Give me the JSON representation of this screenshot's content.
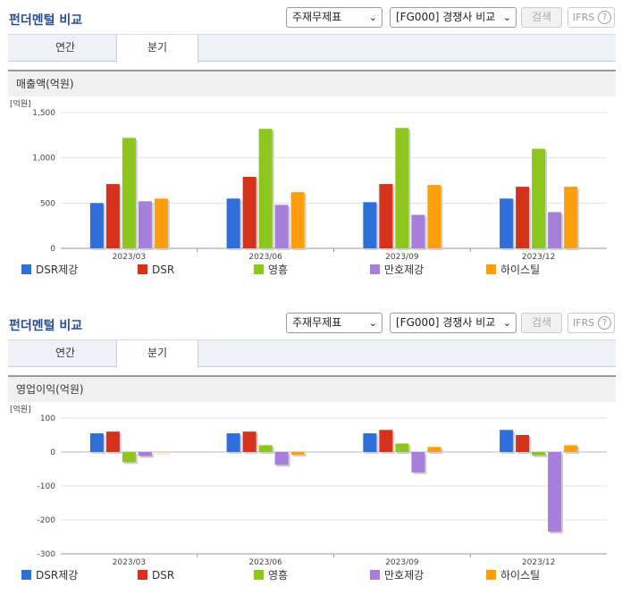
{
  "panels": [
    {
      "title": "펀더멘털 비교",
      "select1": "주재무제표",
      "select2": "[FG000] 경쟁사 비교",
      "search_label": "검색",
      "ifrs_label": "IFRS",
      "ifrs_help": "?",
      "tabs": [
        "연간",
        "분기"
      ],
      "active_tab": "분기",
      "section_title": "매출액(억원)"
    },
    {
      "title": "펀더멘털 비교",
      "select1": "주재무제표",
      "select2": "[FG000] 경쟁사 비교",
      "search_label": "검색",
      "ifrs_label": "IFRS",
      "ifrs_help": "?",
      "tabs": [
        "연간",
        "분기"
      ],
      "active_tab": "분기",
      "section_title": "영업이익(억원)"
    }
  ],
  "colors": {
    "DSR제강": "#2e6fd9",
    "DSR": "#d4321a",
    "영흥": "#8cc61e",
    "만호제강": "#a67fdb",
    "하이스틸": "#ff9f0e"
  },
  "chart_data": [
    {
      "type": "bar",
      "unit_label": "[억원]",
      "categories": [
        "2023/03",
        "2023/06",
        "2023/09",
        "2023/12"
      ],
      "ylim": [
        0,
        1500
      ],
      "yticks": [
        0,
        500,
        1000,
        1500
      ],
      "ytick_labels": [
        "0",
        "500",
        "1,000",
        "1,500"
      ],
      "grid": true,
      "legend": "bottom",
      "series": [
        {
          "name": "DSR제강",
          "values": [
            500,
            550,
            510,
            550
          ]
        },
        {
          "name": "DSR",
          "values": [
            710,
            790,
            710,
            680
          ]
        },
        {
          "name": "영흥",
          "values": [
            1220,
            1320,
            1330,
            1100
          ]
        },
        {
          "name": "만호제강",
          "values": [
            520,
            480,
            370,
            400
          ]
        },
        {
          "name": "하이스틸",
          "values": [
            550,
            620,
            700,
            680
          ]
        }
      ]
    },
    {
      "type": "bar",
      "unit_label": "[억원]",
      "categories": [
        "2023/03",
        "2023/06",
        "2023/09",
        "2023/12"
      ],
      "ylim": [
        -300,
        100
      ],
      "yticks": [
        -300,
        -200,
        -100,
        0,
        100
      ],
      "ytick_labels": [
        "-300",
        "-200",
        "-100",
        "0",
        "100"
      ],
      "grid": true,
      "legend": "bottom",
      "series": [
        {
          "name": "DSR제강",
          "values": [
            55,
            55,
            55,
            65
          ]
        },
        {
          "name": "DSR",
          "values": [
            60,
            60,
            65,
            50
          ]
        },
        {
          "name": "영흥",
          "values": [
            -30,
            20,
            25,
            -10
          ]
        },
        {
          "name": "만호제강",
          "values": [
            -12,
            -38,
            -60,
            -235
          ]
        },
        {
          "name": "하이스틸",
          "values": [
            0,
            -8,
            15,
            20
          ]
        }
      ]
    }
  ]
}
